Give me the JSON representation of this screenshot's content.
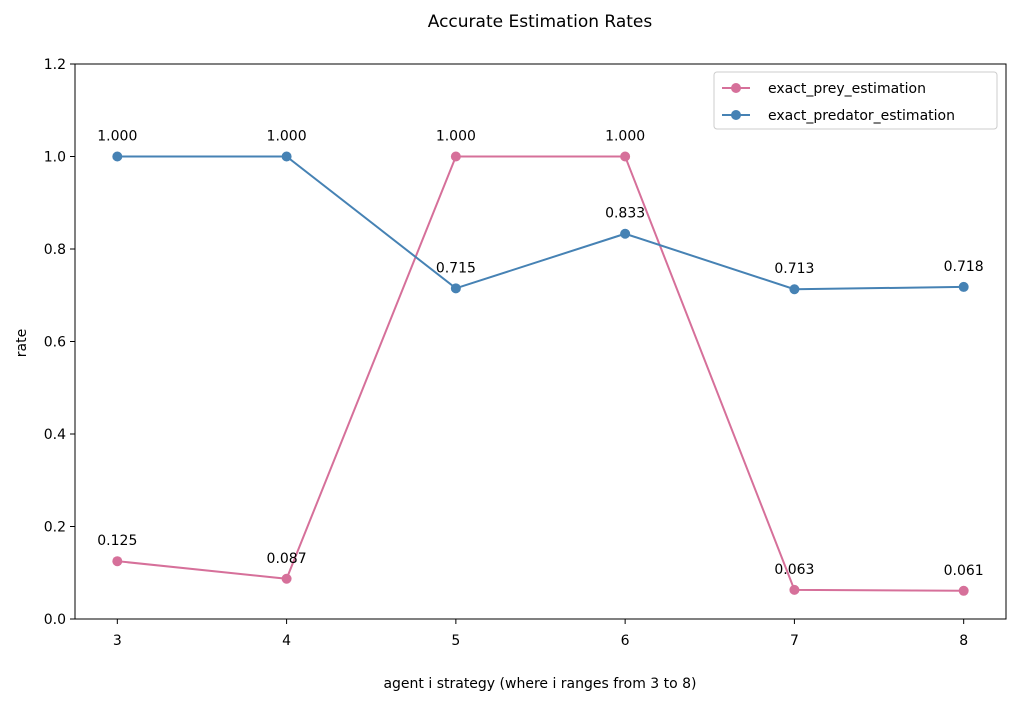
{
  "chart_data": {
    "type": "line",
    "title": "Accurate Estimation Rates",
    "xlabel": "agent i strategy (where i ranges from 3 to 8)",
    "ylabel": "rate",
    "x": [
      3,
      4,
      5,
      6,
      7,
      8
    ],
    "x_tick_labels": [
      "3",
      "4",
      "5",
      "6",
      "7",
      "8"
    ],
    "ylim": [
      0,
      1.2
    ],
    "y_ticks": [
      0.0,
      0.2,
      0.4,
      0.6,
      0.8,
      1.0,
      1.2
    ],
    "y_tick_labels": [
      "0.0",
      "0.2",
      "0.4",
      "0.6",
      "0.8",
      "1.0",
      "1.2"
    ],
    "grid": false,
    "legend_position": "top-right",
    "series": [
      {
        "name": "exact_prey_estimation",
        "color": "#d6709a",
        "values": [
          0.125,
          0.087,
          1.0,
          1.0,
          0.063,
          0.061
        ],
        "labels": [
          "0.125",
          "0.087",
          "1.000",
          "1.000",
          "0.063",
          "0.061"
        ]
      },
      {
        "name": "exact_predator_estimation",
        "color": "#4682b4",
        "values": [
          1.0,
          1.0,
          0.715,
          0.833,
          0.713,
          0.718
        ],
        "labels": [
          "1.000",
          "1.000",
          "0.715",
          "0.833",
          "0.713",
          "0.718"
        ]
      }
    ]
  }
}
